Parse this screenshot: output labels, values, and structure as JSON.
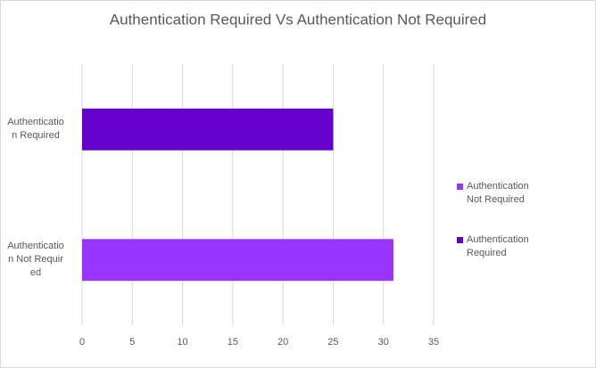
{
  "chart_data": {
    "type": "bar",
    "orientation": "horizontal",
    "title": "Authentication Required Vs Authentication Not Required",
    "categories": [
      "Authentication Not Required",
      "Authentication Required"
    ],
    "values": [
      31,
      25
    ],
    "colors": [
      "#9933ff",
      "#6600cc"
    ],
    "xlim": [
      0,
      35
    ],
    "xticks": [
      0,
      5,
      10,
      15,
      20,
      25,
      30,
      35
    ],
    "grid": true,
    "legend": "right"
  }
}
